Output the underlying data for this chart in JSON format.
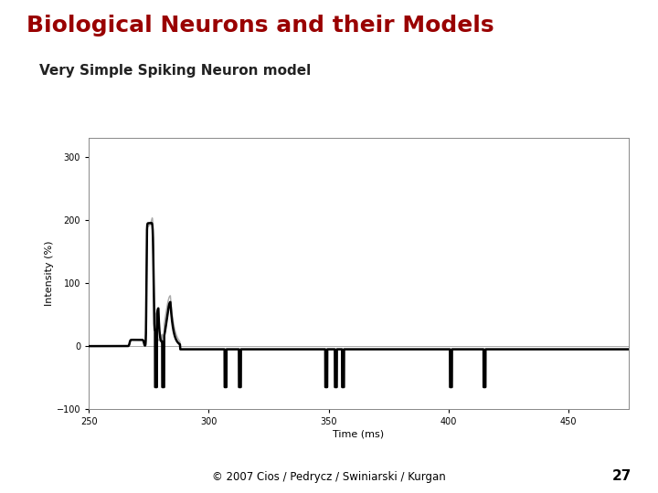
{
  "title": "Biological Neurons and their Models",
  "subtitle": "Very Simple Spiking Neuron model",
  "xlabel": "Time (ms)",
  "ylabel": "Intensity (%)",
  "footer": "© 2007 Cios / Pedrycz / Swiniarski / Kurgan",
  "slide_number": "27",
  "title_color": "#990000",
  "subtitle_color": "#222222",
  "background_color": "#ffffff",
  "plot_bg_color": "#ffffff",
  "xlim": [
    250,
    475
  ],
  "ylim": [
    -100,
    330
  ],
  "xticks": [
    250,
    300,
    350,
    400,
    450
  ],
  "yticks": [
    -100,
    0,
    100,
    200,
    300
  ]
}
